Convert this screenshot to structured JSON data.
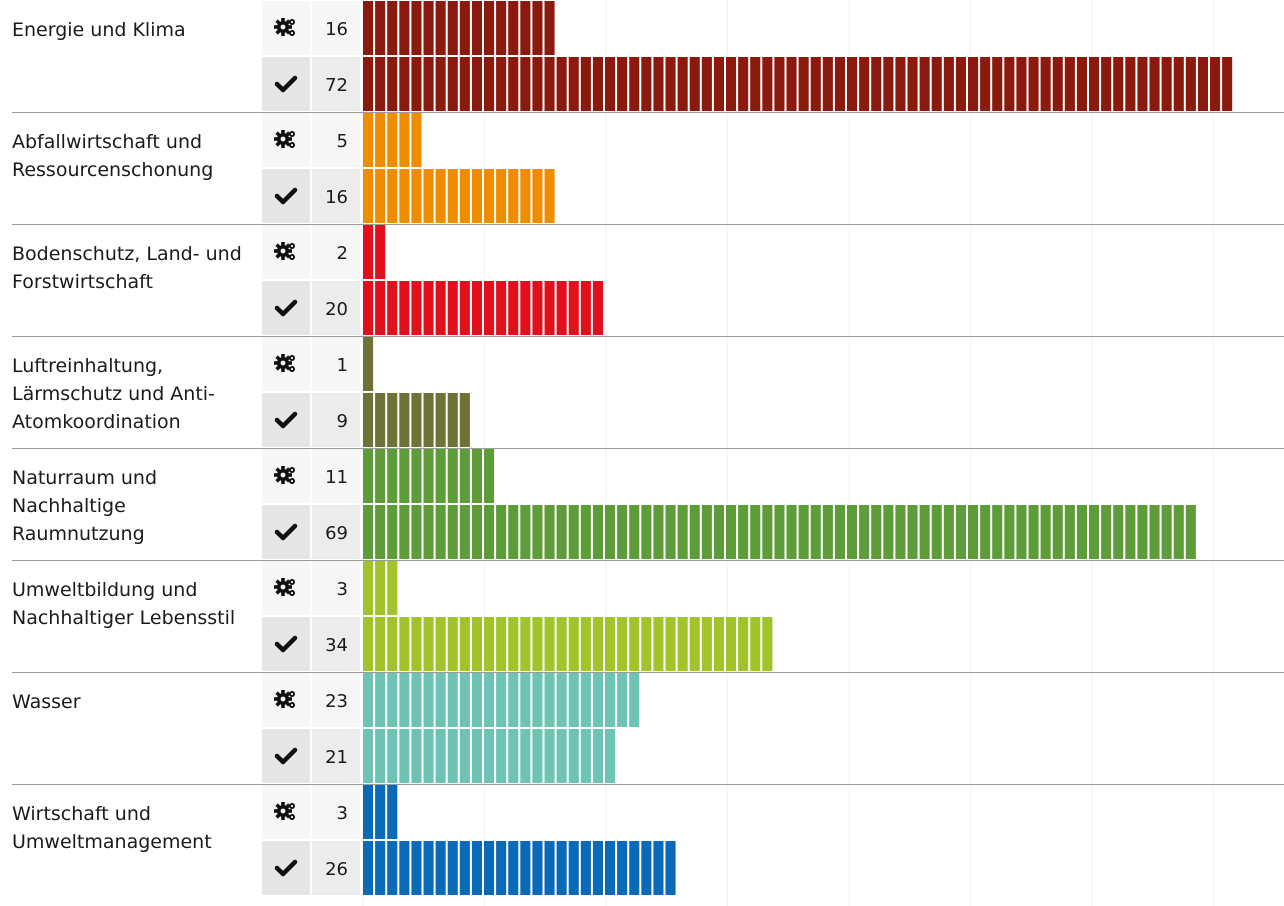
{
  "chart_data": {
    "type": "bar",
    "orientation": "horizontal",
    "unit_blocks": true,
    "series": [
      {
        "key": "in_progress",
        "icon": "gears-icon"
      },
      {
        "key": "completed",
        "icon": "check-icon"
      }
    ],
    "categories": [
      {
        "label": "Energie und Klima",
        "color": "#8b1a0e",
        "values": [
          16,
          72
        ]
      },
      {
        "label": "Abfallwirtschaft und Ressourcenschonung",
        "color": "#f08c00",
        "values": [
          5,
          16
        ]
      },
      {
        "label": "Bodenschutz, Land- und Forstwirtschaft",
        "color": "#e2101c",
        "values": [
          2,
          20
        ]
      },
      {
        "label": "Luftreinhaltung, Lärmschutz und Anti-Atomkoordination",
        "color": "#6e7236",
        "values": [
          1,
          9
        ]
      },
      {
        "label": "Naturraum und Nachhaltige Raumnutzung",
        "color": "#5e9c3a",
        "values": [
          11,
          69
        ]
      },
      {
        "label": "Umweltbildung und Nachhaltiger Lebensstil",
        "color": "#a0c42a",
        "values": [
          3,
          34
        ]
      },
      {
        "label": "Wasser",
        "color": "#6ec4b4",
        "values": [
          23,
          21
        ]
      },
      {
        "label": "Wirtschaft und Umweltmanagement",
        "color": "#0a6ab8",
        "values": [
          3,
          26
        ]
      }
    ],
    "xlim": [
      0,
      72
    ]
  }
}
